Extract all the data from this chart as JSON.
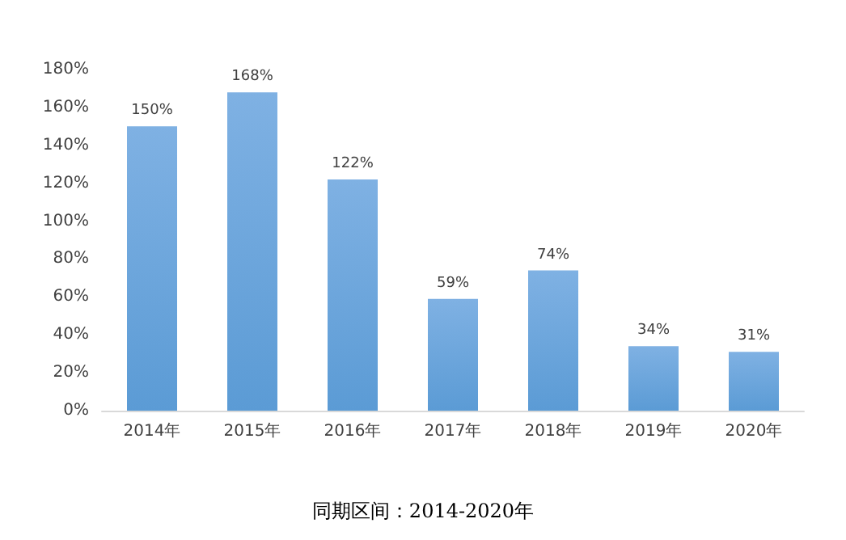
{
  "chart_data": {
    "type": "bar",
    "categories": [
      "2014年",
      "2015年",
      "2016年",
      "2017年",
      "2018年",
      "2019年",
      "2020年"
    ],
    "values": [
      150,
      168,
      122,
      59,
      74,
      34,
      31
    ],
    "value_labels": [
      "150%",
      "168%",
      "122%",
      "59%",
      "74%",
      "34%",
      "31%"
    ],
    "color": "#5b9bd5",
    "ylim": [
      0,
      180
    ],
    "yticks": [
      {
        "value": 0,
        "label": "0%"
      },
      {
        "value": 20,
        "label": "20%"
      },
      {
        "value": 40,
        "label": "40%"
      },
      {
        "value": 60,
        "label": "60%"
      },
      {
        "value": 80,
        "label": "80%"
      },
      {
        "value": 100,
        "label": "100%"
      },
      {
        "value": 120,
        "label": "120%"
      },
      {
        "value": 140,
        "label": "140%"
      },
      {
        "value": 160,
        "label": "160%"
      },
      {
        "value": 180,
        "label": "180%"
      }
    ],
    "grid": false,
    "annotations": [
      "同期区间：2014-2020年"
    ]
  }
}
